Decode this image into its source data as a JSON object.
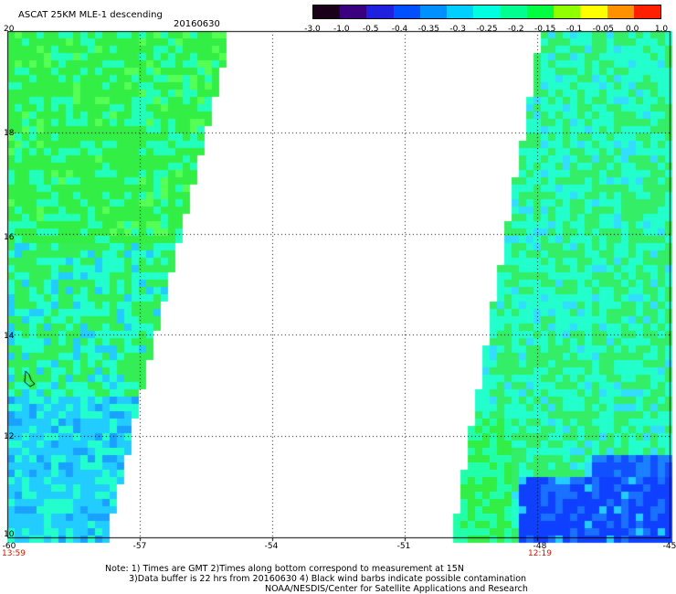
{
  "header": {
    "title": "ASCAT 25KM MLE-1 descending",
    "date": "20160630"
  },
  "colorbar": {
    "labels": [
      "-3.0",
      "-1.0",
      "-0.5",
      "-0.4",
      "-0.35",
      "-0.3",
      "-0.25",
      "-0.2",
      "-0.15",
      "-0.1",
      "-0.05",
      "0.0",
      "1.0"
    ],
    "colors": [
      "#1a0018",
      "#3a0080",
      "#2020e0",
      "#0050ff",
      "#0090ff",
      "#00d0ff",
      "#00ffe0",
      "#00ff90",
      "#00ff40",
      "#90ff00",
      "#ffff00",
      "#ff9000",
      "#ff2000"
    ]
  },
  "axes": {
    "y_ticks": [
      "20",
      "18",
      "16",
      "14",
      "12",
      "10"
    ],
    "x_ticks": [
      "-60",
      "-57",
      "-54",
      "-51",
      "-48",
      "-45"
    ],
    "time_left": "13:59",
    "time_right": "12:19"
  },
  "map": {
    "lon_range": [
      -60,
      -45
    ],
    "lat_range": [
      10,
      20
    ],
    "colors": {
      "green": "#33ee44",
      "cyan": "#22ffcc",
      "light_blue": "#22ccff",
      "blue": "#1040ff",
      "outline": "#000000"
    }
  },
  "footer": {
    "line1": "Note: 1) Times are GMT 2)Times along bottom correspond to measurement at 15N",
    "line2": "3)Data buffer is 22 hrs from 20160630 4) Black wind barbs indicate possible contamination",
    "line3": "NOAA/NESDIS/Center for Satellite Applications and Research"
  }
}
